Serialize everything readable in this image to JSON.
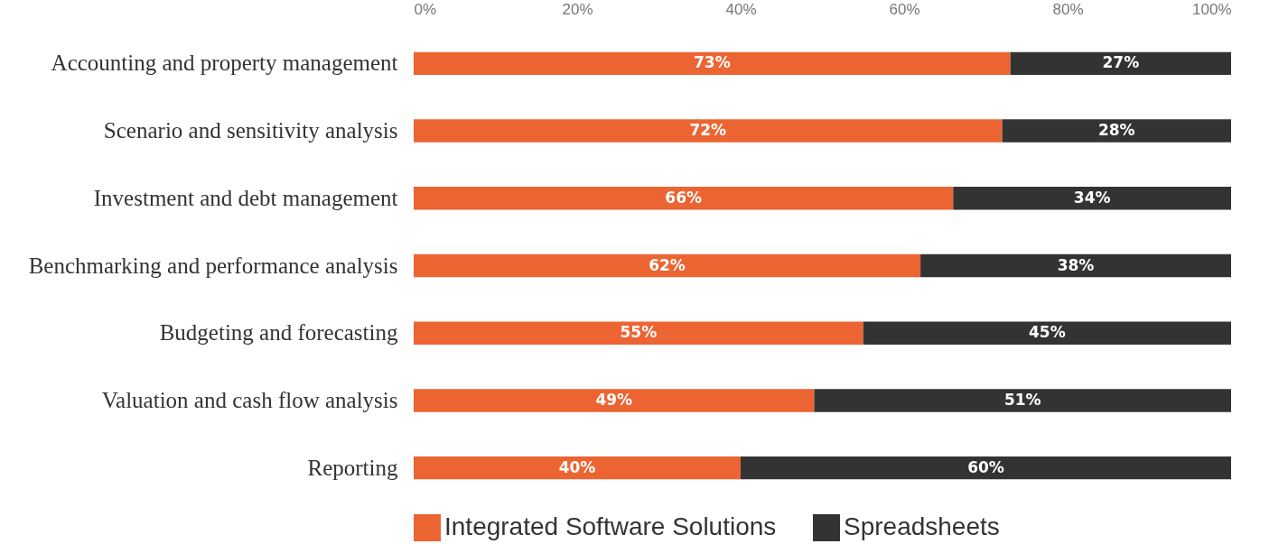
{
  "chart_data": {
    "type": "bar",
    "orientation": "horizontal",
    "stacked": true,
    "legend": "bottom",
    "grid": false,
    "categories": [
      "Accounting and property management",
      "Scenario and sensitivity analysis",
      "Investment and debt management",
      "Benchmarking and performance analysis",
      "Budgeting and forecasting",
      "Valuation and cash flow analysis",
      "Reporting"
    ],
    "series": [
      {
        "name": "Integrated Software Solutions",
        "color": "#ec6431",
        "values": [
          73,
          72,
          66,
          62,
          55,
          49,
          40
        ],
        "value_labels": [
          "73%",
          "72%",
          "66%",
          "62%",
          "55%",
          "49%",
          "40%"
        ]
      },
      {
        "name": "Spreadsheets",
        "color": "#333333",
        "values": [
          27,
          28,
          34,
          38,
          45,
          51,
          60
        ],
        "value_labels": [
          "27%",
          "28%",
          "34%",
          "38%",
          "45%",
          "51%",
          "60%"
        ]
      }
    ],
    "xlim": [
      0,
      100
    ],
    "xticks": [
      {
        "value": 0,
        "label": "0%"
      },
      {
        "value": 20,
        "label": "20%"
      },
      {
        "value": 40,
        "label": "40%"
      },
      {
        "value": 60,
        "label": "60%"
      },
      {
        "value": 80,
        "label": "80%"
      },
      {
        "value": 100,
        "label": "100%"
      }
    ]
  }
}
